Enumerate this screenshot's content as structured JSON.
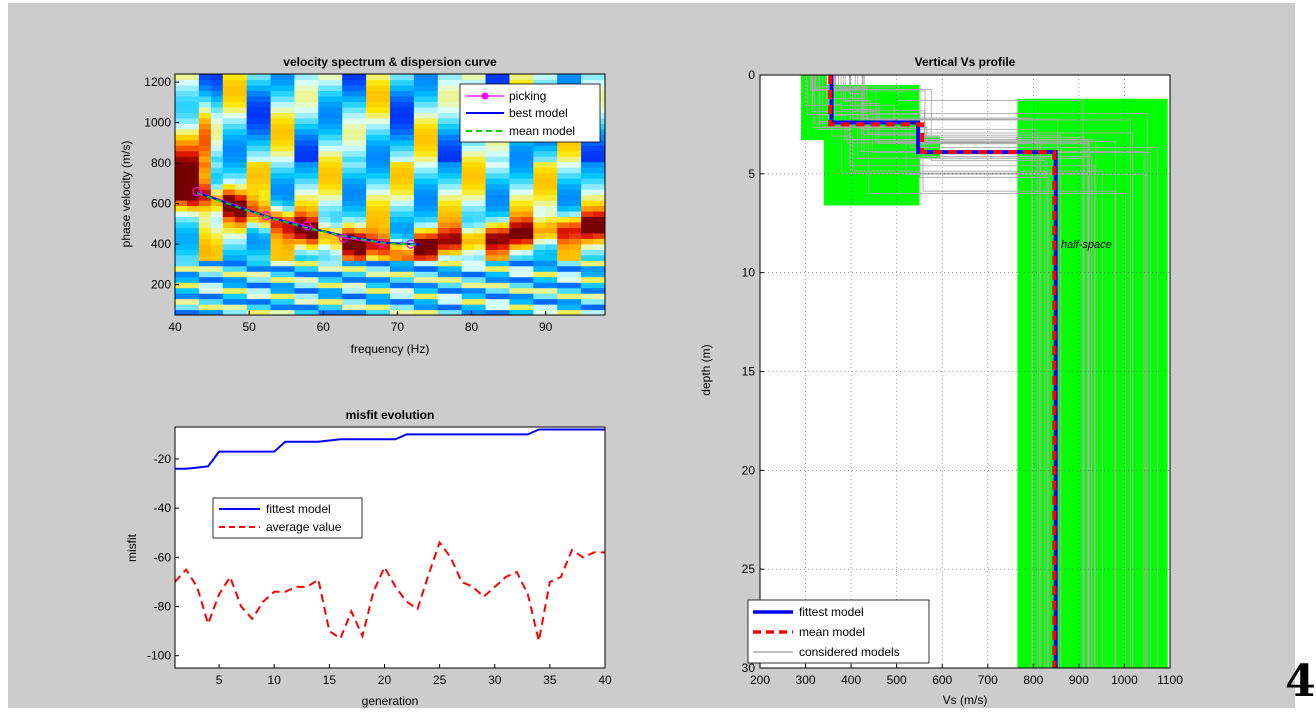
{
  "corner_mark": "4",
  "chart_data": [
    {
      "type": "heatmap",
      "title": "velocity spectrum & dispersion curve",
      "xlabel": "frequency (Hz)",
      "ylabel": "phase velocity (m/s)",
      "xlim": [
        40,
        98
      ],
      "ylim": [
        50,
        1240
      ],
      "xticks": [
        40,
        50,
        60,
        70,
        80,
        90
      ],
      "yticks": [
        200,
        400,
        600,
        800,
        1000,
        1200
      ],
      "grid": false,
      "legend_position": "top-right",
      "colormap": "jet",
      "series": [
        {
          "name": "picking",
          "color": "#ff00ff",
          "style": "line-circle-markers",
          "points": [
            [
              43,
              660
            ],
            [
              52.3,
              540
            ],
            [
              57.8,
              490
            ],
            [
              62.7,
              430
            ],
            [
              67.8,
              405
            ],
            [
              71.8,
              400
            ]
          ]
        },
        {
          "name": "best model",
          "color": "#0000ff",
          "style": "solid",
          "points": [
            [
              43,
              655
            ],
            [
              48,
              590
            ],
            [
              53,
              530
            ],
            [
              58,
              480
            ],
            [
              63,
              440
            ],
            [
              68,
              408
            ],
            [
              73,
              398
            ]
          ]
        },
        {
          "name": "mean model",
          "color": "#00cc00",
          "style": "dashed",
          "points": [
            [
              43,
              652
            ],
            [
              48,
              588
            ],
            [
              53,
              528
            ],
            [
              58,
              478
            ],
            [
              63,
              438
            ],
            [
              68,
              406
            ],
            [
              73,
              396
            ]
          ]
        }
      ]
    },
    {
      "type": "line",
      "title": "misfit evolution",
      "xlabel": "generation",
      "ylabel": "misfit",
      "xlim": [
        1,
        40
      ],
      "ylim": [
        -105,
        -7
      ],
      "xticks": [
        5,
        10,
        15,
        20,
        25,
        30,
        35,
        40
      ],
      "yticks": [
        -20,
        -40,
        -60,
        -80,
        -100
      ],
      "grid": false,
      "legend_position": "middle-left",
      "series": [
        {
          "name": "fittest model",
          "color": "#0000ff",
          "style": "solid",
          "x": [
            1,
            2,
            3,
            4,
            5,
            6,
            7,
            8,
            9,
            10,
            11,
            12,
            13,
            14,
            15,
            16,
            17,
            18,
            19,
            20,
            21,
            22,
            23,
            24,
            25,
            26,
            27,
            28,
            29,
            30,
            31,
            32,
            33,
            34,
            35,
            36,
            37,
            38,
            39,
            40
          ],
          "y": [
            -24,
            -24,
            -23.5,
            -23,
            -17,
            -17,
            -17,
            -17,
            -17,
            -17,
            -13,
            -13,
            -13,
            -13,
            -12.5,
            -12,
            -12,
            -12,
            -12,
            -12,
            -12,
            -10,
            -10,
            -10,
            -10,
            -10,
            -10,
            -10,
            -10,
            -10,
            -10,
            -10,
            -10,
            -8,
            -8,
            -8,
            -8,
            -8,
            -8,
            -8
          ]
        },
        {
          "name": "average value",
          "color": "#ff0000",
          "style": "dashed",
          "x": [
            1,
            2,
            3,
            4,
            5,
            6,
            7,
            8,
            9,
            10,
            11,
            12,
            13,
            14,
            15,
            16,
            17,
            18,
            19,
            20,
            21,
            22,
            23,
            24,
            25,
            26,
            27,
            28,
            29,
            30,
            31,
            32,
            33,
            34,
            35,
            36,
            37,
            38,
            39,
            40
          ],
          "y": [
            -70,
            -65,
            -72,
            -87,
            -75,
            -68,
            -80,
            -85,
            -78,
            -74,
            -74,
            -72,
            -72,
            -69,
            -90,
            -93,
            -82,
            -92,
            -74,
            -64,
            -72,
            -78,
            -81,
            -67,
            -54,
            -60,
            -70,
            -72,
            -76,
            -72,
            -68,
            -66,
            -75,
            -94,
            -70,
            -68,
            -57,
            -60,
            -58,
            -58
          ]
        }
      ]
    },
    {
      "type": "line",
      "title": "Vertical Vs profile",
      "xlabel": "Vs (m/s)",
      "ylabel": "depth (m)",
      "xlim": [
        200,
        1100
      ],
      "ylim": [
        0,
        30
      ],
      "y_reversed": true,
      "xticks": [
        200,
        300,
        400,
        500,
        600,
        700,
        800,
        900,
        1000,
        1100
      ],
      "yticks": [
        0,
        5,
        10,
        15,
        20,
        25,
        30
      ],
      "grid": true,
      "legend_position": "bottom-left",
      "annotation": "half-space",
      "search_space": [
        {
          "vs": [
            290,
            345
          ],
          "depth": [
            0,
            3.3
          ]
        },
        {
          "vs": [
            340,
            550
          ],
          "depth": [
            0.5,
            6.6
          ]
        },
        {
          "vs": [
            550,
            595
          ],
          "depth": [
            3.1,
            4.2
          ]
        },
        {
          "vs": [
            765,
            1095
          ],
          "depth": [
            1.2,
            30
          ]
        }
      ],
      "series": [
        {
          "name": "fittest model",
          "color": "#0000ff",
          "style": "solid",
          "points": [
            [
              357,
              0
            ],
            [
              357,
              2.4
            ],
            [
              547,
              2.4
            ],
            [
              547,
              3.9
            ],
            [
              849,
              3.9
            ],
            [
              849,
              30
            ]
          ]
        },
        {
          "name": "mean model",
          "color": "#ff0000",
          "style": "dashed",
          "points": [
            [
              354,
              0
            ],
            [
              354,
              2.5
            ],
            [
              556,
              2.5
            ],
            [
              556,
              3.9
            ],
            [
              846,
              3.9
            ],
            [
              846,
              30
            ]
          ]
        },
        {
          "name": "considered models",
          "color": "#aaaaaa",
          "style": "solid"
        }
      ]
    }
  ]
}
